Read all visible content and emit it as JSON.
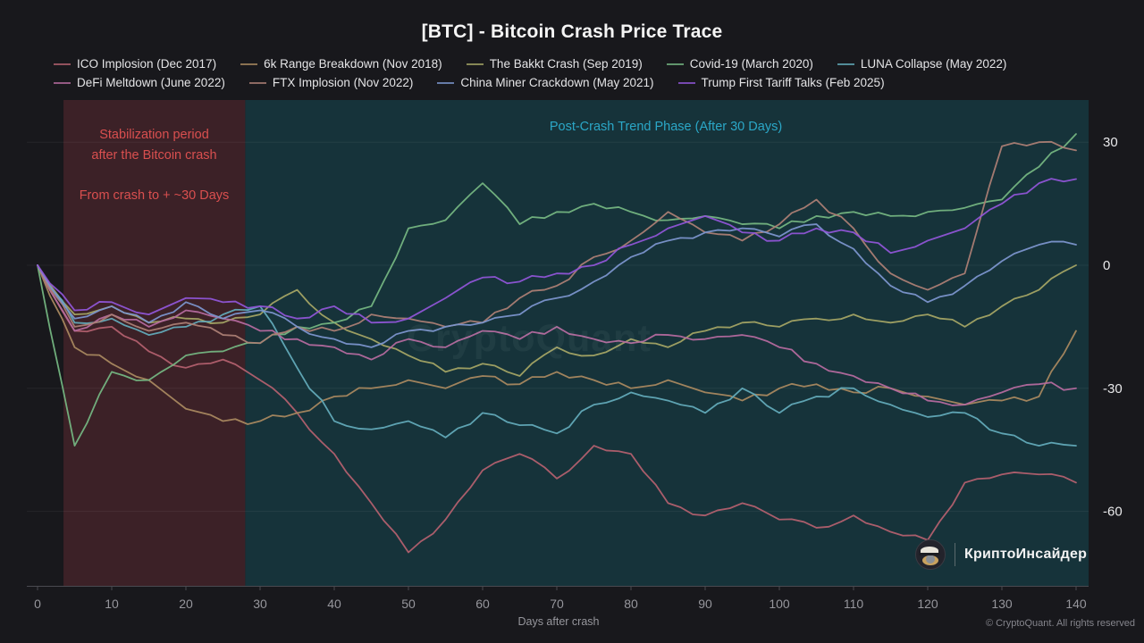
{
  "title": "[BTC] - Bitcoin Crash Price Trace",
  "annotations": {
    "stabilization_line1": "Stabilization period",
    "stabilization_line2": "after the Bitcoin crash",
    "stabilization_sub": "From crash to + ~30 Days",
    "post_crash": "Post-Crash Trend Phase (After 30 Days)",
    "watermark": "CryptoQuant"
  },
  "brand": {
    "name": "КриптоИнсайдер",
    "avatar": "detective-coin-logo"
  },
  "footer": "© CryptoQuant. All rights reserved",
  "colors": {
    "page_bg": "#18181c",
    "plot_bg_teal": "#16333a",
    "plot_bg_red": "#3c2127",
    "annotation_red": "#d94f4f",
    "annotation_cyan": "#2ba7c7",
    "axis_line": "#4a4a50",
    "tick_label": "#96969c",
    "y_label": "#e8e8ea",
    "gridline": "rgba(255,255,255,0.06)"
  },
  "chart_data": {
    "type": "line",
    "xlabel": "Days after crash",
    "ylabel": "",
    "x_ticks": [
      0,
      10,
      20,
      30,
      40,
      50,
      60,
      70,
      80,
      90,
      100,
      110,
      120,
      130,
      140
    ],
    "y_ticks": [
      30,
      0,
      -30,
      -60
    ],
    "xlim": [
      -1.5,
      141.7
    ],
    "ylim": [
      -78,
      40
    ],
    "grid": "horizontal-faint",
    "legend_position": "top",
    "legend_rows": [
      [
        0,
        1,
        2,
        3,
        4
      ],
      [
        5,
        6,
        7,
        8
      ]
    ],
    "regions": [
      {
        "name": "stabilization",
        "x0": 3.5,
        "x1": 28,
        "color": "#3c2127"
      },
      {
        "name": "post-crash",
        "x0": 28,
        "x1": 141.7,
        "color": "#16333a"
      }
    ],
    "days": [
      0,
      5,
      10,
      15,
      20,
      25,
      30,
      35,
      40,
      45,
      50,
      55,
      60,
      65,
      70,
      75,
      80,
      85,
      90,
      95,
      100,
      105,
      110,
      115,
      120,
      125,
      130,
      135,
      140
    ],
    "series": [
      {
        "name": "ICO Implosion (Dec 2017)",
        "color": "#b2606e",
        "values": [
          0,
          -16,
          -15,
          -21,
          -25,
          -23,
          -28,
          -36,
          -46,
          -58,
          -70,
          -62,
          -50,
          -46,
          -52,
          -44,
          -46,
          -58,
          -61,
          -58,
          -62,
          -64,
          -61,
          -65,
          -67,
          -53,
          -51,
          -51,
          -53
        ]
      },
      {
        "name": "6k Range Breakdown (Nov 2018)",
        "color": "#a8885f",
        "values": [
          0,
          -20,
          -24,
          -28,
          -35,
          -38,
          -38,
          -36,
          -32,
          -30,
          -28,
          -30,
          -27,
          -29,
          -26,
          -28,
          -30,
          -28,
          -31,
          -33,
          -30,
          -29,
          -31,
          -30,
          -32,
          -34,
          -33,
          -32,
          -16
        ]
      },
      {
        "name": "The Bakkt Crash (Sep 2019)",
        "color": "#a3a464",
        "values": [
          0,
          -12,
          -10,
          -14,
          -13,
          -14,
          -12,
          -6,
          -14,
          -18,
          -22,
          -26,
          -24,
          -27,
          -20,
          -22,
          -18,
          -20,
          -16,
          -14,
          -15,
          -13,
          -12,
          -14,
          -12,
          -15,
          -10,
          -6,
          0
        ]
      },
      {
        "name": "Covid-19 (March 2020)",
        "color": "#74b581",
        "values": [
          0,
          -44,
          -26,
          -28,
          -22,
          -21,
          -19,
          -15,
          -14,
          -10,
          9,
          11,
          20,
          10,
          13,
          15,
          13,
          11,
          12,
          10,
          9,
          12,
          13,
          12,
          13,
          14,
          16,
          24,
          32
        ]
      },
      {
        "name": "LUNA Collapse (May 2022)",
        "color": "#62aab8",
        "values": [
          0,
          -14,
          -13,
          -17,
          -15,
          -12,
          -10,
          -25,
          -38,
          -40,
          -38,
          -42,
          -36,
          -39,
          -41,
          -34,
          -31,
          -33,
          -36,
          -30,
          -36,
          -32,
          -30,
          -34,
          -37,
          -36,
          -41,
          -44,
          -44
        ]
      },
      {
        "name": "DeFi Meltdown (June 2022)",
        "color": "#b46a9e",
        "values": [
          0,
          -16,
          -12,
          -15,
          -11,
          -13,
          -16,
          -18,
          -20,
          -23,
          -18,
          -20,
          -16,
          -18,
          -15,
          -18,
          -19,
          -17,
          -18,
          -17,
          -20,
          -24,
          -27,
          -30,
          -33,
          -34,
          -31,
          -29,
          -30
        ]
      },
      {
        "name": "FTX Implosion (Nov 2022)",
        "color": "#ab7e74",
        "values": [
          0,
          -15,
          -12,
          -16,
          -14,
          -17,
          -19,
          -15,
          -16,
          -12,
          -13,
          -15,
          -14,
          -8,
          -5,
          2,
          6,
          13,
          8,
          6,
          10,
          16,
          9,
          -2,
          -6,
          -2,
          29,
          30,
          28
        ]
      },
      {
        "name": "China Miner Crackdown (May 2021)",
        "color": "#7b95cc",
        "values": [
          0,
          -13,
          -10,
          -14,
          -9,
          -13,
          -11,
          -15,
          -18,
          -20,
          -16,
          -15,
          -14,
          -12,
          -8,
          -4,
          2,
          6,
          8,
          9,
          7,
          10,
          4,
          -5,
          -9,
          -5,
          1,
          5,
          5
        ]
      },
      {
        "name": "Trump First Tariff Talks (Feb 2025)",
        "color": "#8f55d6",
        "values": [
          0,
          -11,
          -9,
          -12,
          -8,
          -9,
          -10,
          -13,
          -10,
          -14,
          -13,
          -8,
          -3,
          -4,
          -2,
          0,
          5,
          9,
          12,
          8,
          6,
          9,
          8,
          3,
          6,
          9,
          15,
          20,
          21
        ]
      }
    ]
  }
}
